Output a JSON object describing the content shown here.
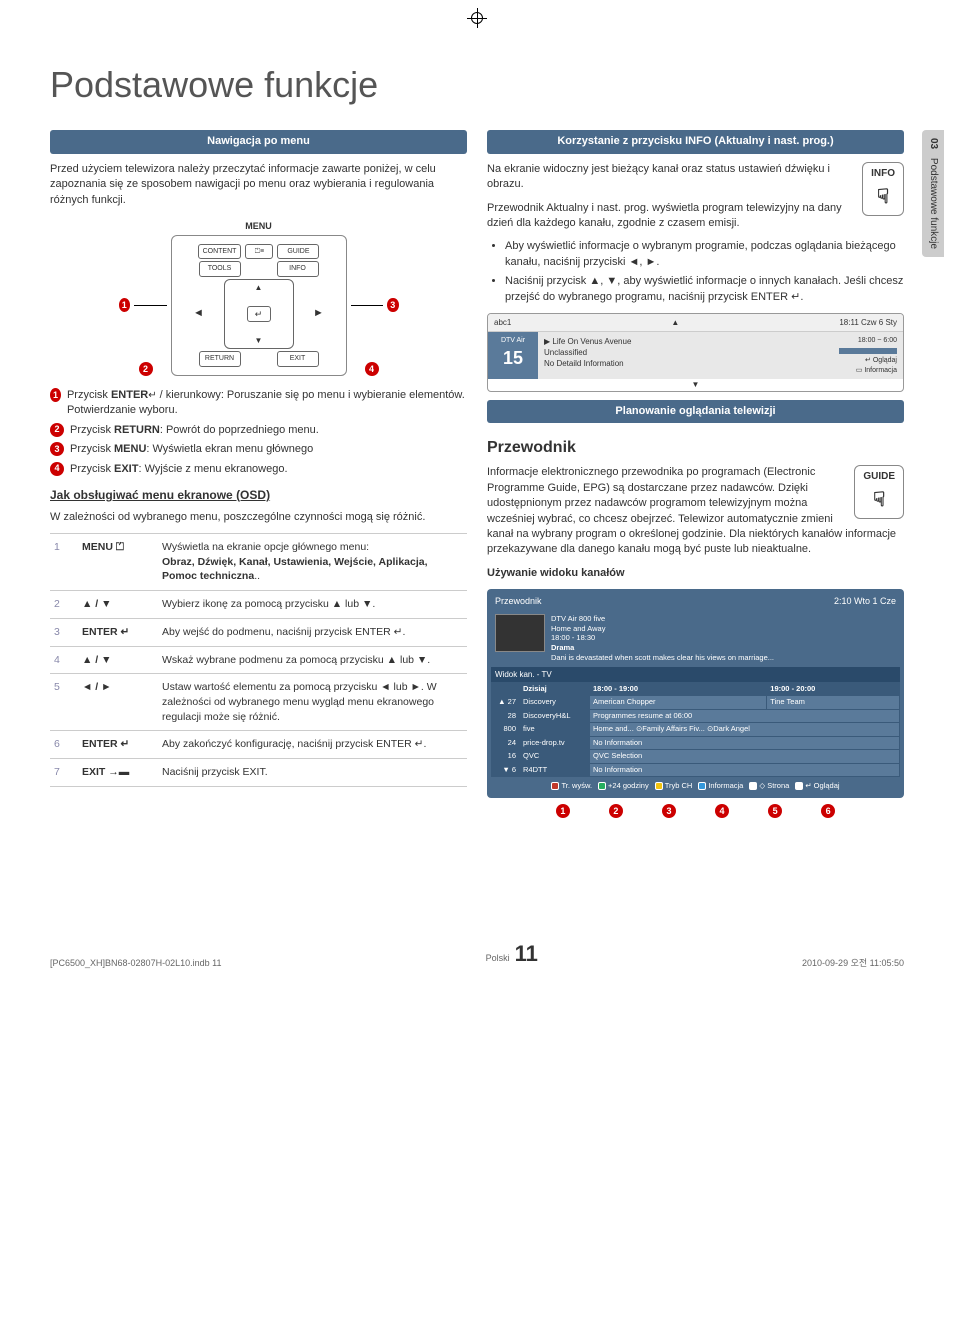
{
  "page": {
    "title": "Podstawowe funkcje",
    "lang_label": "Polski",
    "number": "11",
    "footer_file": "[PC6500_XH]BN68-02807H-02L10.indb   11",
    "footer_date": "2010-09-29   오전 11:05:50"
  },
  "side_tab": {
    "num": "03",
    "label": "Podstawowe funkcje"
  },
  "left": {
    "nav_header": "Nawigacja po menu",
    "intro": "Przed użyciem telewizora należy przeczytać informacje zawarte poniżej, w celu zapoznania się ze sposobem nawigacji po menu oraz wybierania i regulowania różnych funkcji.",
    "remote": {
      "menu": "MENU",
      "content": "CONTENT",
      "guide": "GUIDE",
      "tools": "TOOLS",
      "info": "INFO",
      "return": "RETURN",
      "exit": "EXIT",
      "enter": "↵"
    },
    "callouts": [
      {
        "n": "1",
        "text_pre": "Przycisk ",
        "key": "ENTER",
        "icon": "↵",
        "text": " / kierunkowy: Poruszanie się po menu i wybieranie elementów. Potwierdzanie wyboru."
      },
      {
        "n": "2",
        "text_pre": "Przycisk ",
        "key": "RETURN",
        "text": ": Powrót do poprzedniego menu."
      },
      {
        "n": "3",
        "text_pre": "Przycisk ",
        "key": "MENU",
        "text": ": Wyświetla ekran menu głównego"
      },
      {
        "n": "4",
        "text_pre": "Przycisk ",
        "key": "EXIT",
        "text": ": Wyjście z menu ekranowego."
      }
    ],
    "osd_heading": "Jak obsługiwać menu ekranowe (OSD)",
    "osd_intro": "W zależności od wybranego menu, poszczególne czynności mogą się różnić.",
    "steps": [
      {
        "n": "1",
        "key": "MENU ⏍",
        "desc_pre": "Wyświetla na ekranie opcje głównego menu:",
        "desc_bold": "Obraz, Dźwięk, Kanał, Ustawienia, Wejście, Aplikacja, Pomoc techniczna",
        "desc_post": ".."
      },
      {
        "n": "2",
        "key": "▲ / ▼",
        "desc": "Wybierz ikonę za pomocą przycisku ▲ lub ▼."
      },
      {
        "n": "3",
        "key": "ENTER ↵",
        "desc": "Aby wejść do podmenu, naciśnij przycisk ENTER ↵."
      },
      {
        "n": "4",
        "key": "▲ / ▼",
        "desc": "Wskaż wybrane podmenu za pomocą przycisku ▲ lub ▼."
      },
      {
        "n": "5",
        "key": "◄ / ►",
        "desc": "Ustaw wartość elementu za pomocą przycisku ◄ lub ►. W zależności od wybranego menu wygląd menu ekranowego regulacji może się różnić."
      },
      {
        "n": "6",
        "key": "ENTER ↵",
        "desc": "Aby zakończyć konfigurację, naciśnij przycisk ENTER ↵."
      },
      {
        "n": "7",
        "key": "EXIT →▬",
        "desc": "Naciśnij przycisk EXIT."
      }
    ]
  },
  "right": {
    "info_header": "Korzystanie z przycisku INFO (Aktualny i nast. prog.)",
    "info_badge": "INFO",
    "info_p1": "Na ekranie widoczny jest bieżący kanał oraz status ustawień dźwięku i obrazu.",
    "info_p2": "Przewodnik Aktualny i nast. prog. wyświetla program telewizyjny na dany dzień dla każdego kanału, zgodnie z czasem emisji.",
    "info_bullets": [
      "Aby wyświetlić informacje o wybranym programie, podczas oglądania bieżącego kanału, naciśnij przyciski ◄, ►.",
      "Naciśnij przycisk ▲, ▼, aby wyświetlić informacje o innych kanałach. Jeśli chcesz przejść do wybranego programu, naciśnij przycisk ENTER ↵."
    ],
    "info_panel": {
      "ch_name": "abc1",
      "time": "18:11 Czw 6 Sty",
      "source": "DTV Air",
      "ch_num": "15",
      "prog_title": "Life On Venus Avenue",
      "prog_class": "Unclassified",
      "prog_detail": "No Detaild Information",
      "slot": "18:00 ~ 6:00",
      "watch": "Oglądaj",
      "info": "Informacja"
    },
    "plan_header": "Planowanie oglądania telewizji",
    "guide_title": "Przewodnik",
    "guide_badge": "GUIDE",
    "guide_p": "Informacje elektronicznego przewodnika po programach (Electronic Programme Guide, EPG) są dostarczane przez nadawców. Dzięki udostępnionym przez nadawców programom telewizyjnym można wcześniej wybrać, co chcesz obejrzeć. Telewizor automatycznie zmieni kanał na wybrany program o określonej godzinie. Dla niektórych kanałów informacje przekazywane dla danego kanału mogą być puste lub nieaktualne.",
    "chan_view_heading": "Używanie widoku kanałów",
    "guide_panel": {
      "title": "Przewodnik",
      "clock": "2:10 Wto 1 Cze",
      "feat_source": "DTV Air 800 five",
      "feat_prog": "Home and Away",
      "feat_time": "18:00 - 18:30",
      "feat_genre": "Drama",
      "feat_desc": "Dani is devastated when scott makes clear his views on marriage...",
      "view_label": "Widok kan. - TV",
      "today": "Dzisiaj",
      "slot1": "18:00 - 19:00",
      "slot2": "19:00 - 20:00",
      "rows": [
        {
          "ch": "▲  27",
          "name": "Discovery",
          "c1": "American Chopper",
          "c2": "Tine Team"
        },
        {
          "ch": "28",
          "name": "DiscoveryH&L",
          "c1": "Programmes resume at 06:00",
          "c2": ""
        },
        {
          "ch": "800",
          "name": "five",
          "c1": "Home and...   ⊙Family Affairs   Fiv...   ⊙Dark Angel",
          "c2": ""
        },
        {
          "ch": "24",
          "name": "price-drop.tv",
          "c1": "No Information",
          "c2": ""
        },
        {
          "ch": "16",
          "name": "QVC",
          "c1": "QVC Selection",
          "c2": ""
        },
        {
          "ch": "▼  6",
          "name": "R4DTT",
          "c1": "No Information",
          "c2": ""
        }
      ],
      "legend": [
        {
          "color": "#c0392b",
          "label": "Tr. wyśw."
        },
        {
          "color": "#27ae60",
          "label": "+24 godziny"
        },
        {
          "color": "#f1c40f",
          "label": "Tryb CH"
        },
        {
          "color": "#3498db",
          "label": "Informacja"
        },
        {
          "color": "#ffffff",
          "label": "◇ Strona"
        },
        {
          "color": "#ffffff",
          "label": "↵ Oglądaj"
        }
      ]
    }
  }
}
